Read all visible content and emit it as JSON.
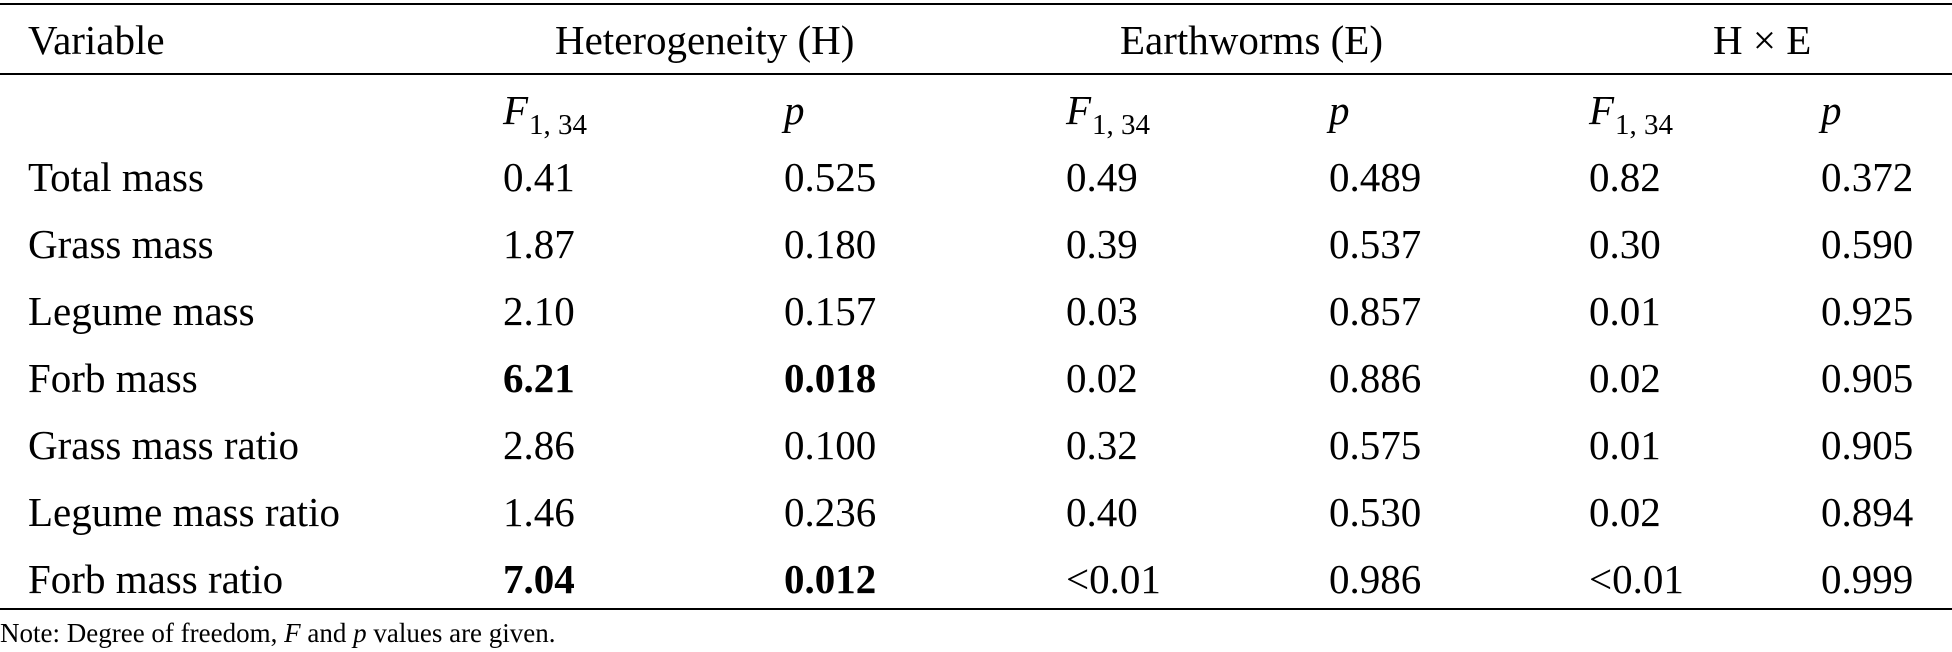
{
  "table": {
    "header_groups": {
      "variable": "Variable",
      "heterogeneity": "Heterogeneity (H)",
      "earthworms": "Earthworms (E)",
      "interaction": "H × E"
    },
    "subheaders": {
      "f_symbol": "F",
      "f_subscript": "1, 34",
      "p_symbol": "p"
    },
    "rows": [
      {
        "variable": "Total mass",
        "h_f": "0.41",
        "h_p": "0.525",
        "e_f": "0.49",
        "e_p": "0.489",
        "x_f": "0.82",
        "x_p": "0.372",
        "bold_h": false
      },
      {
        "variable": "Grass mass",
        "h_f": "1.87",
        "h_p": "0.180",
        "e_f": "0.39",
        "e_p": "0.537",
        "x_f": "0.30",
        "x_p": "0.590",
        "bold_h": false
      },
      {
        "variable": "Legume mass",
        "h_f": "2.10",
        "h_p": "0.157",
        "e_f": "0.03",
        "e_p": "0.857",
        "x_f": "0.01",
        "x_p": "0.925",
        "bold_h": false
      },
      {
        "variable": "Forb mass",
        "h_f": "6.21",
        "h_p": "0.018",
        "e_f": "0.02",
        "e_p": "0.886",
        "x_f": "0.02",
        "x_p": "0.905",
        "bold_h": true
      },
      {
        "variable": "Grass mass ratio",
        "h_f": "2.86",
        "h_p": "0.100",
        "e_f": "0.32",
        "e_p": "0.575",
        "x_f": "0.01",
        "x_p": "0.905",
        "bold_h": false
      },
      {
        "variable": "Legume mass ratio",
        "h_f": "1.46",
        "h_p": "0.236",
        "e_f": "0.40",
        "e_p": "0.530",
        "x_f": "0.02",
        "x_p": "0.894",
        "bold_h": false
      },
      {
        "variable": "Forb mass ratio",
        "h_f": "7.04",
        "h_p": "0.012",
        "e_f": "<0.01",
        "e_p": "0.986",
        "x_f": "<0.01",
        "x_p": "0.999",
        "bold_h": true
      }
    ]
  },
  "note": {
    "prefix": "Note: Degree of freedom, ",
    "f_symbol": "F",
    "middle": " and ",
    "p_symbol": "p",
    "suffix": " values are given."
  }
}
